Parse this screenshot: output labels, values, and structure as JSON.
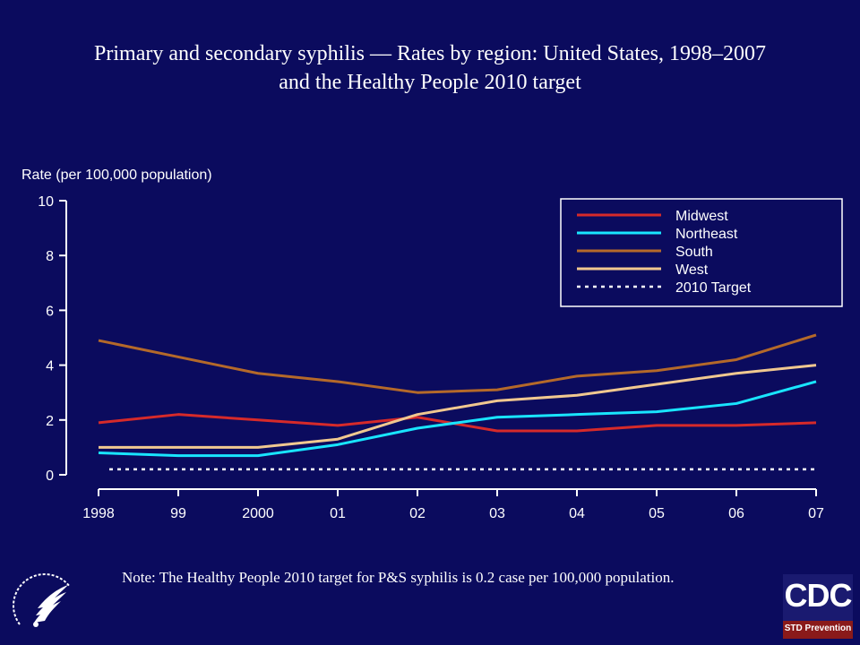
{
  "title_line1": "Primary and secondary syphilis — Rates by region: United States, 1998–2007",
  "title_line2": "and the Healthy People 2010 target",
  "note": "Note: The Healthy People 2010 target for P&S syphilis is 0.2 case per 100,000 population.",
  "logos": {
    "cdc_text": "CDC",
    "cdc_subtext": "STD Prevention",
    "hhs_icon": "hhs-eagle-seal-icon"
  },
  "colors": {
    "background": "#0b0b5e",
    "Midwest": "#d62a2a",
    "Northeast": "#19e5ff",
    "South": "#b4692a",
    "West": "#f0c890",
    "2010 Target": "#ffffff"
  },
  "chart_data": {
    "type": "line",
    "title": "Primary and secondary syphilis — Rates by region: United States, 1998–2007 and the Healthy People 2010 target",
    "ylabel": "Rate (per 100,000 population)",
    "xlabel": "",
    "categories": [
      "1998",
      "99",
      "2000",
      "01",
      "02",
      "03",
      "04",
      "05",
      "06",
      "07"
    ],
    "yticks": [
      0,
      2,
      4,
      6,
      8,
      10
    ],
    "ylim": [
      0,
      10
    ],
    "grid": false,
    "legend_position": "top-right",
    "series": [
      {
        "name": "Midwest",
        "style": "solid",
        "values": [
          1.9,
          2.2,
          2.0,
          1.8,
          2.1,
          1.6,
          1.6,
          1.8,
          1.8,
          1.9
        ]
      },
      {
        "name": "Northeast",
        "style": "solid",
        "values": [
          0.8,
          0.7,
          0.7,
          1.1,
          1.7,
          2.1,
          2.2,
          2.3,
          2.6,
          3.4
        ]
      },
      {
        "name": "South",
        "style": "solid",
        "values": [
          4.9,
          4.3,
          3.7,
          3.4,
          3.0,
          3.1,
          3.6,
          3.8,
          4.2,
          5.1
        ]
      },
      {
        "name": "West",
        "style": "solid",
        "values": [
          1.0,
          1.0,
          1.0,
          1.3,
          2.2,
          2.7,
          2.9,
          3.3,
          3.7,
          4.0
        ]
      },
      {
        "name": "2010 Target",
        "style": "dotted",
        "values": [
          0.2,
          0.2,
          0.2,
          0.2,
          0.2,
          0.2,
          0.2,
          0.2,
          0.2,
          0.2
        ]
      }
    ]
  }
}
